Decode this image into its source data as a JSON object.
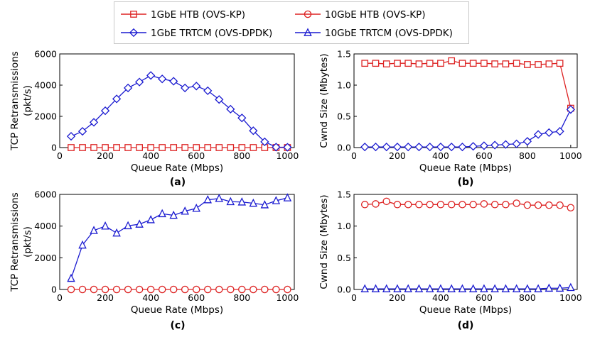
{
  "legend": {
    "entries": [
      {
        "label": "1GbE HTB (OVS-KP)",
        "color": "#dd2222",
        "marker": "square"
      },
      {
        "label": "10GbE HTB (OVS-KP)",
        "color": "#dd2222",
        "marker": "circle"
      },
      {
        "label": "1GbE TRTCM (OVS-DPDK)",
        "color": "#1a1ad0",
        "marker": "diamond"
      },
      {
        "label": "10GbE TRTCM (OVS-DPDK)",
        "color": "#1a1ad0",
        "marker": "triangle"
      }
    ]
  },
  "chart_data": [
    {
      "id": "a",
      "type": "line",
      "caption": "(a)",
      "xlabel": "Queue Rate (Mbps)",
      "ylabel": [
        "TCP Retransmissions",
        "(pkt/s)"
      ],
      "xlim": [
        0,
        1030
      ],
      "ylim": [
        0,
        6000
      ],
      "xticks": [
        0,
        200,
        400,
        600,
        800,
        1000
      ],
      "yticks": [
        0,
        2000,
        4000,
        6000
      ],
      "x": [
        50,
        100,
        150,
        200,
        250,
        300,
        350,
        400,
        450,
        500,
        550,
        600,
        650,
        700,
        750,
        800,
        850,
        900,
        950,
        1000
      ],
      "series": [
        {
          "name": "1GbE HTB (OVS-KP)",
          "marker": "square",
          "color": "#dd2222",
          "values": [
            0,
            0,
            0,
            0,
            0,
            0,
            0,
            0,
            0,
            0,
            0,
            0,
            0,
            0,
            0,
            0,
            0,
            0,
            0,
            0
          ]
        },
        {
          "name": "1GbE TRTCM (OVS-DPDK)",
          "marker": "diamond",
          "color": "#1a1ad0",
          "values": [
            720,
            1040,
            1620,
            2360,
            3120,
            3820,
            4200,
            4620,
            4400,
            4250,
            3820,
            3940,
            3640,
            3080,
            2460,
            1900,
            1080,
            370,
            30,
            20
          ]
        }
      ]
    },
    {
      "id": "b",
      "type": "line",
      "caption": "(b)",
      "xlabel": "Queue Rate (Mbps)",
      "ylabel": [
        "Cwnd Size (Mbytes)"
      ],
      "xlim": [
        0,
        1030
      ],
      "ylim": [
        0,
        1.5
      ],
      "xticks": [
        0,
        200,
        400,
        600,
        800,
        1000
      ],
      "yticks": [
        0,
        0.5,
        1.0,
        1.5
      ],
      "ytick_labels": [
        "0.0",
        "0.5",
        "1.0",
        "1.5"
      ],
      "x": [
        50,
        100,
        150,
        200,
        250,
        300,
        350,
        400,
        450,
        500,
        550,
        600,
        650,
        700,
        750,
        800,
        850,
        900,
        950,
        1000
      ],
      "series": [
        {
          "name": "1GbE HTB (OVS-KP)",
          "marker": "square",
          "color": "#dd2222",
          "values": [
            1.35,
            1.35,
            1.34,
            1.35,
            1.35,
            1.34,
            1.35,
            1.35,
            1.39,
            1.35,
            1.35,
            1.35,
            1.34,
            1.34,
            1.35,
            1.33,
            1.33,
            1.34,
            1.35,
            0.63
          ]
        },
        {
          "name": "1GbE TRTCM (OVS-DPDK)",
          "marker": "diamond",
          "color": "#1a1ad0",
          "values": [
            0.01,
            0.01,
            0.01,
            0.01,
            0.01,
            0.01,
            0.01,
            0.01,
            0.01,
            0.01,
            0.02,
            0.03,
            0.04,
            0.05,
            0.06,
            0.1,
            0.21,
            0.24,
            0.26,
            0.61
          ]
        }
      ]
    },
    {
      "id": "c",
      "type": "line",
      "caption": "(c)",
      "xlabel": "Queue Rate (Mbps)",
      "ylabel": [
        "TCP Retransmissions",
        "(pkt/s)"
      ],
      "xlim": [
        0,
        1030
      ],
      "ylim": [
        0,
        6000
      ],
      "xticks": [
        0,
        200,
        400,
        600,
        800,
        1000
      ],
      "yticks": [
        0,
        2000,
        4000,
        6000
      ],
      "x": [
        50,
        100,
        150,
        200,
        250,
        300,
        350,
        400,
        450,
        500,
        550,
        600,
        650,
        700,
        750,
        800,
        850,
        900,
        950,
        1000
      ],
      "series": [
        {
          "name": "10GbE HTB (OVS-KP)",
          "marker": "circle",
          "color": "#dd2222",
          "values": [
            0,
            0,
            0,
            0,
            0,
            0,
            0,
            0,
            0,
            0,
            0,
            0,
            0,
            0,
            0,
            0,
            0,
            0,
            0,
            0
          ]
        },
        {
          "name": "10GbE TRTCM (OVS-DPDK)",
          "marker": "triangle",
          "color": "#1a1ad0",
          "values": [
            700,
            2800,
            3720,
            4000,
            3560,
            4020,
            4120,
            4400,
            4780,
            4680,
            4940,
            5120,
            5660,
            5740,
            5540,
            5520,
            5440,
            5340,
            5600,
            5780
          ]
        }
      ]
    },
    {
      "id": "d",
      "type": "line",
      "caption": "(d)",
      "xlabel": "Queue Rate (Mbps)",
      "ylabel": [
        "Cwnd Size (Mbytes)"
      ],
      "xlim": [
        0,
        1030
      ],
      "ylim": [
        0,
        1.5
      ],
      "xticks": [
        0,
        200,
        400,
        600,
        800,
        1000
      ],
      "yticks": [
        0,
        0.5,
        1.0,
        1.5
      ],
      "ytick_labels": [
        "0.0",
        "0.5",
        "1.0",
        "1.5"
      ],
      "x": [
        50,
        100,
        150,
        200,
        250,
        300,
        350,
        400,
        450,
        500,
        550,
        600,
        650,
        700,
        750,
        800,
        850,
        900,
        950,
        1000
      ],
      "series": [
        {
          "name": "10GbE HTB (OVS-KP)",
          "marker": "circle",
          "color": "#dd2222",
          "values": [
            1.34,
            1.35,
            1.39,
            1.34,
            1.34,
            1.34,
            1.34,
            1.34,
            1.34,
            1.34,
            1.34,
            1.35,
            1.34,
            1.34,
            1.36,
            1.33,
            1.33,
            1.33,
            1.33,
            1.29
          ]
        },
        {
          "name": "10GbE TRTCM (OVS-DPDK)",
          "marker": "triangle",
          "color": "#1a1ad0",
          "values": [
            0.01,
            0.01,
            0.01,
            0.01,
            0.01,
            0.01,
            0.01,
            0.01,
            0.01,
            0.01,
            0.01,
            0.01,
            0.01,
            0.01,
            0.01,
            0.01,
            0.01,
            0.02,
            0.02,
            0.03
          ]
        }
      ]
    }
  ]
}
